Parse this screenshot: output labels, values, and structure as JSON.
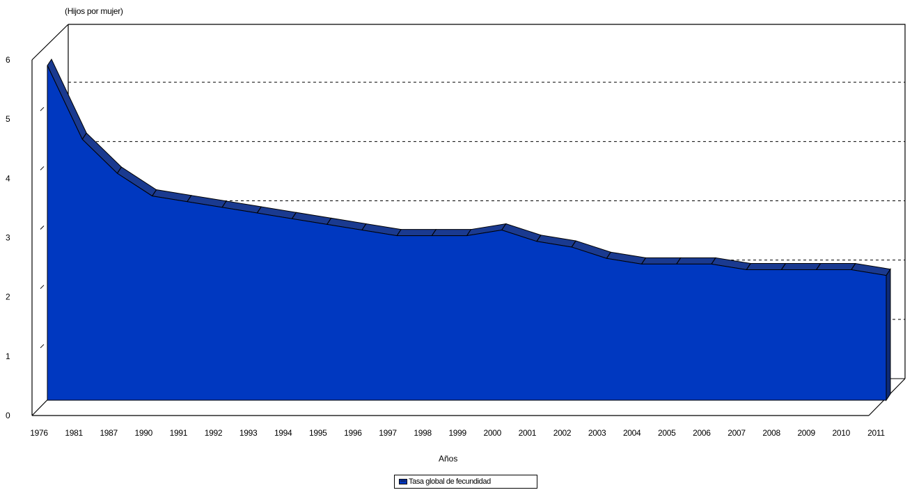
{
  "chart_data": {
    "type": "area",
    "title": "",
    "ylabel": "(Hijos por mujer)",
    "xlabel": "Años",
    "categories": [
      "1976",
      "1981",
      "1987",
      "1990",
      "1991",
      "1992",
      "1993",
      "1994",
      "1995",
      "1996",
      "1997",
      "1998",
      "1999",
      "2000",
      "2001",
      "2002",
      "2003",
      "2004",
      "2005",
      "2006",
      "2007",
      "2008",
      "2009",
      "2010",
      "2011"
    ],
    "series": [
      {
        "name": "Tasa global de fecundidad",
        "values": [
          5.9,
          4.6,
          4.0,
          3.6,
          3.5,
          3.4,
          3.3,
          3.2,
          3.1,
          3.0,
          2.9,
          2.9,
          2.9,
          3.0,
          2.8,
          2.7,
          2.5,
          2.4,
          2.4,
          2.4,
          2.3,
          2.3,
          2.3,
          2.3,
          2.2
        ]
      }
    ],
    "yticks": [
      "0",
      "1",
      "2",
      "3",
      "4",
      "5",
      "6"
    ],
    "ylim": [
      0,
      6
    ],
    "grid": "dashed horizontal",
    "legend": "bottom",
    "colors": {
      "front": "#0038c0",
      "top": "#1a3a90",
      "side": "#0d2a78"
    }
  }
}
